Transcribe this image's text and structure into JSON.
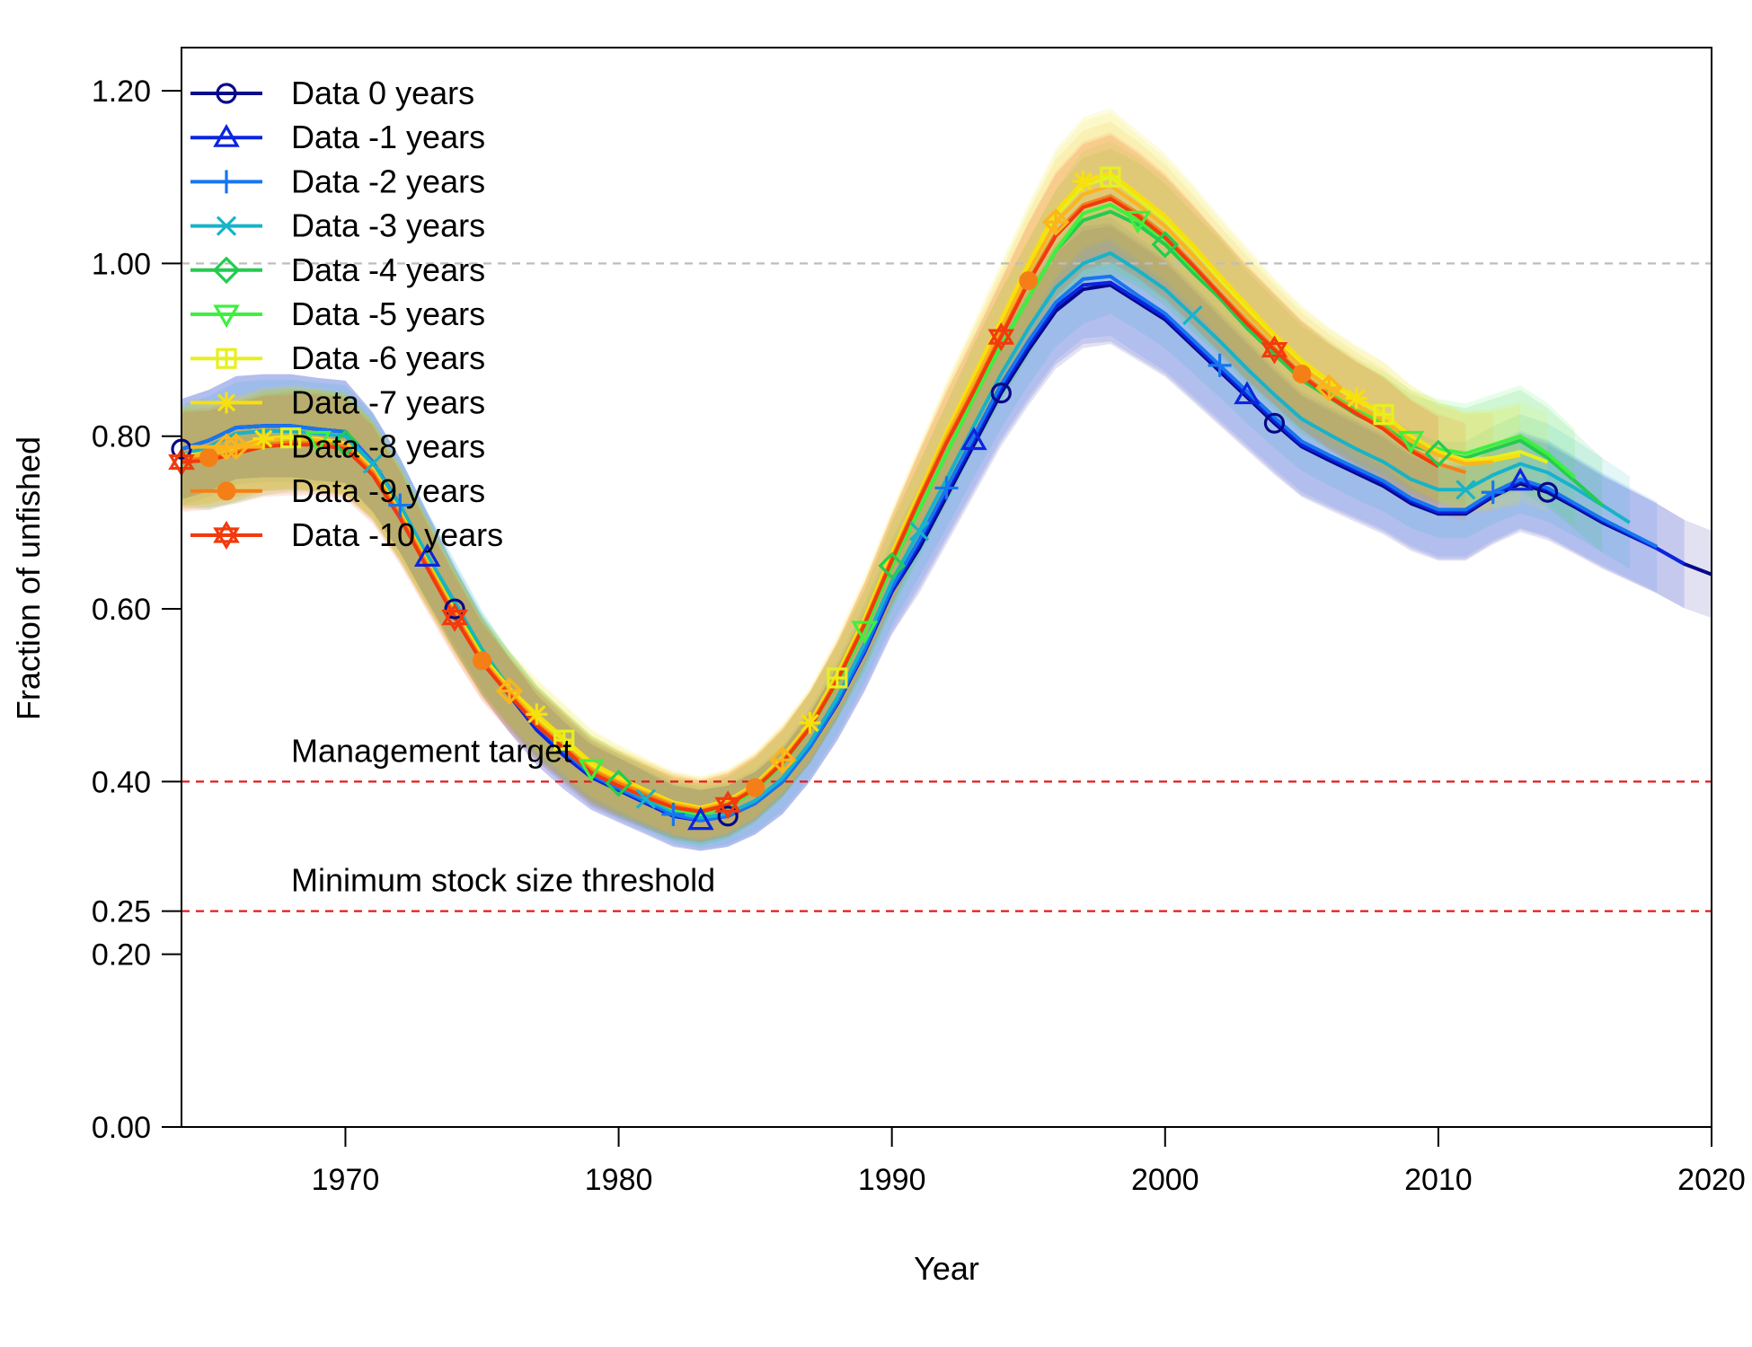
{
  "chart_data": {
    "type": "line",
    "title": "",
    "xlabel": "Year",
    "ylabel": "Fraction of unfished",
    "xlim": [
      1964,
      2020
    ],
    "ylim": [
      0,
      1.25
    ],
    "x_ticks": [
      "1970",
      "1980",
      "1990",
      "2000",
      "2010",
      "2020"
    ],
    "x_tick_values": [
      1970,
      1980,
      1990,
      2000,
      2010,
      2020
    ],
    "y_ticks": [
      "0.00",
      "0.20",
      "0.25",
      "0.40",
      "0.60",
      "0.80",
      "1.00",
      "1.20"
    ],
    "y_tick_values": [
      0.0,
      0.2,
      0.25,
      0.4,
      0.6,
      0.8,
      1.0,
      1.2
    ],
    "grid": false,
    "legend_position": "top-left",
    "reference_lines": [
      {
        "y": 1.0,
        "color": "#bdbdbd",
        "style": "dashed",
        "label": ""
      },
      {
        "y": 0.4,
        "color": "#e31a1c",
        "style": "dashed",
        "label": "Management target"
      },
      {
        "y": 0.25,
        "color": "#e31a1c",
        "style": "dashed",
        "label": "Minimum stock size threshold"
      }
    ],
    "x": [
      1964,
      1965,
      1966,
      1967,
      1968,
      1969,
      1970,
      1971,
      1972,
      1973,
      1974,
      1975,
      1976,
      1977,
      1978,
      1979,
      1980,
      1981,
      1982,
      1983,
      1984,
      1985,
      1986,
      1987,
      1988,
      1989,
      1990,
      1991,
      1992,
      1993,
      1994,
      1995,
      1996,
      1997,
      1998,
      1999,
      2000,
      2001,
      2002,
      2003,
      2004,
      2005,
      2006,
      2007,
      2008,
      2009,
      2010,
      2011,
      2012,
      2013,
      2014,
      2015,
      2016,
      2017,
      2018,
      2019,
      2020
    ],
    "series": [
      {
        "name": "Data 0 years",
        "color": "#08088a",
        "marker": "circle",
        "values": [
          0.785,
          0.795,
          0.81,
          0.812,
          0.812,
          0.808,
          0.805,
          0.77,
          0.72,
          0.66,
          0.6,
          0.545,
          0.5,
          0.46,
          0.43,
          0.405,
          0.39,
          0.375,
          0.36,
          0.355,
          0.36,
          0.375,
          0.4,
          0.44,
          0.49,
          0.55,
          0.62,
          0.67,
          0.73,
          0.79,
          0.85,
          0.9,
          0.945,
          0.97,
          0.975,
          0.955,
          0.935,
          0.905,
          0.875,
          0.845,
          0.815,
          0.788,
          0.772,
          0.757,
          0.742,
          0.722,
          0.71,
          0.71,
          0.73,
          0.745,
          0.735,
          0.718,
          0.7,
          0.685,
          0.67,
          0.652,
          0.64
        ]
      },
      {
        "name": "Data -1 years",
        "color": "#0b24e0",
        "marker": "triangle",
        "values": [
          0.785,
          0.795,
          0.81,
          0.812,
          0.812,
          0.808,
          0.805,
          0.77,
          0.72,
          0.66,
          0.6,
          0.545,
          0.5,
          0.46,
          0.43,
          0.405,
          0.39,
          0.375,
          0.36,
          0.355,
          0.36,
          0.375,
          0.4,
          0.44,
          0.49,
          0.55,
          0.62,
          0.675,
          0.735,
          0.795,
          0.855,
          0.905,
          0.95,
          0.975,
          0.978,
          0.958,
          0.938,
          0.908,
          0.878,
          0.848,
          0.818,
          0.79,
          0.775,
          0.76,
          0.745,
          0.725,
          0.712,
          0.712,
          0.732,
          0.748,
          0.738,
          0.72,
          0.702,
          0.686,
          0.67,
          0.652,
          null
        ]
      },
      {
        "name": "Data -2 years",
        "color": "#1676f0",
        "marker": "plus",
        "values": [
          0.785,
          0.795,
          0.81,
          0.812,
          0.812,
          0.808,
          0.805,
          0.77,
          0.72,
          0.66,
          0.605,
          0.55,
          0.505,
          0.465,
          0.435,
          0.408,
          0.392,
          0.377,
          0.362,
          0.355,
          0.36,
          0.375,
          0.4,
          0.44,
          0.492,
          0.553,
          0.625,
          0.68,
          0.74,
          0.8,
          0.86,
          0.91,
          0.955,
          0.982,
          0.985,
          0.963,
          0.942,
          0.912,
          0.882,
          0.852,
          0.822,
          0.794,
          0.778,
          0.763,
          0.748,
          0.728,
          0.715,
          0.715,
          0.735,
          0.75,
          0.74,
          0.722,
          0.704,
          0.688,
          0.672,
          null,
          null
        ]
      },
      {
        "name": "Data -3 years",
        "color": "#17b3c9",
        "marker": "x",
        "values": [
          0.778,
          0.788,
          0.803,
          0.806,
          0.806,
          0.803,
          0.8,
          0.768,
          0.72,
          0.662,
          0.608,
          0.553,
          0.508,
          0.47,
          0.44,
          0.412,
          0.395,
          0.38,
          0.365,
          0.358,
          0.363,
          0.378,
          0.404,
          0.445,
          0.497,
          0.56,
          0.632,
          0.69,
          0.75,
          0.812,
          0.872,
          0.925,
          0.972,
          1.0,
          1.012,
          0.992,
          0.97,
          0.94,
          0.91,
          0.878,
          0.848,
          0.82,
          0.802,
          0.785,
          0.77,
          0.75,
          0.738,
          0.738,
          0.755,
          0.768,
          0.758,
          0.74,
          0.72,
          0.7,
          null,
          null,
          null
        ]
      },
      {
        "name": "Data -4 years",
        "color": "#23cc4f",
        "marker": "diamond",
        "values": [
          0.775,
          0.772,
          0.782,
          0.795,
          0.797,
          0.795,
          0.792,
          0.762,
          0.712,
          0.655,
          0.6,
          0.548,
          0.508,
          0.47,
          0.442,
          0.415,
          0.398,
          0.383,
          0.368,
          0.362,
          0.37,
          0.39,
          0.42,
          0.462,
          0.515,
          0.575,
          0.65,
          0.715,
          0.78,
          0.845,
          0.905,
          0.96,
          1.015,
          1.05,
          1.06,
          1.045,
          1.022,
          0.99,
          0.96,
          0.925,
          0.895,
          0.865,
          0.845,
          0.825,
          0.81,
          0.79,
          0.78,
          0.775,
          0.785,
          0.795,
          0.775,
          0.748,
          0.72,
          null,
          null,
          null,
          null
        ]
      },
      {
        "name": "Data -5 years",
        "color": "#3ef03e",
        "marker": "triangle-down",
        "values": [
          0.778,
          0.775,
          0.78,
          0.79,
          0.795,
          0.795,
          0.79,
          0.76,
          0.71,
          0.653,
          0.598,
          0.546,
          0.508,
          0.47,
          0.442,
          0.415,
          0.398,
          0.383,
          0.368,
          0.362,
          0.37,
          0.39,
          0.42,
          0.462,
          0.515,
          0.575,
          0.65,
          0.715,
          0.78,
          0.845,
          0.905,
          0.96,
          1.015,
          1.058,
          1.068,
          1.05,
          1.028,
          0.995,
          0.965,
          0.93,
          0.9,
          0.87,
          0.85,
          0.83,
          0.815,
          0.795,
          0.785,
          0.78,
          0.79,
          0.8,
          0.78,
          0.752,
          null,
          null,
          null,
          null,
          null
        ]
      },
      {
        "name": "Data -6 years",
        "color": "#e6f01e",
        "marker": "square",
        "values": [
          0.778,
          0.778,
          0.785,
          0.795,
          0.798,
          0.795,
          0.79,
          0.76,
          0.71,
          0.652,
          0.597,
          0.545,
          0.508,
          0.475,
          0.448,
          0.42,
          0.403,
          0.388,
          0.374,
          0.368,
          0.376,
          0.395,
          0.425,
          0.465,
          0.52,
          0.585,
          0.66,
          0.73,
          0.8,
          0.865,
          0.93,
          0.995,
          1.055,
          1.09,
          1.1,
          1.075,
          1.05,
          1.018,
          0.982,
          0.948,
          0.915,
          0.885,
          0.862,
          0.842,
          0.825,
          0.8,
          0.782,
          0.772,
          0.775,
          0.782,
          0.77,
          null,
          null,
          null,
          null,
          null,
          null
        ]
      },
      {
        "name": "Data -7 years",
        "color": "#f7e00c",
        "marker": "asterisk",
        "values": [
          0.778,
          0.78,
          0.788,
          0.797,
          0.8,
          0.797,
          0.792,
          0.762,
          0.712,
          0.654,
          0.598,
          0.545,
          0.508,
          0.478,
          0.45,
          0.422,
          0.405,
          0.39,
          0.376,
          0.37,
          0.378,
          0.397,
          0.428,
          0.468,
          0.525,
          0.59,
          0.665,
          0.735,
          0.805,
          0.87,
          0.935,
          1.0,
          1.06,
          1.095,
          1.105,
          1.08,
          1.055,
          1.022,
          0.986,
          0.952,
          0.918,
          0.888,
          0.864,
          0.844,
          0.826,
          0.8,
          0.782,
          0.77,
          0.772,
          0.778,
          null,
          null,
          null,
          null,
          null,
          null,
          null
        ]
      },
      {
        "name": "Data -8 years",
        "color": "#fbb41c",
        "marker": "diamond-plus",
        "values": [
          0.775,
          0.78,
          0.788,
          0.795,
          0.797,
          0.795,
          0.79,
          0.76,
          0.71,
          0.652,
          0.595,
          0.542,
          0.505,
          0.47,
          0.442,
          0.415,
          0.4,
          0.387,
          0.374,
          0.368,
          0.376,
          0.395,
          0.425,
          0.465,
          0.52,
          0.585,
          0.66,
          0.73,
          0.8,
          0.862,
          0.925,
          0.99,
          1.048,
          1.08,
          1.09,
          1.068,
          1.043,
          1.01,
          0.975,
          0.942,
          0.91,
          0.88,
          0.856,
          0.836,
          0.818,
          0.794,
          0.778,
          0.768,
          0.77,
          null,
          null,
          null,
          null,
          null,
          null,
          null,
          null
        ]
      },
      {
        "name": "Data -9 years",
        "color": "#f57f17",
        "marker": "circle-filled",
        "values": [
          0.772,
          0.775,
          0.782,
          0.79,
          0.793,
          0.792,
          0.788,
          0.758,
          0.708,
          0.65,
          0.593,
          0.54,
          0.502,
          0.467,
          0.44,
          0.413,
          0.398,
          0.385,
          0.372,
          0.366,
          0.374,
          0.393,
          0.423,
          0.463,
          0.518,
          0.583,
          0.658,
          0.728,
          0.795,
          0.855,
          0.918,
          0.98,
          1.035,
          1.068,
          1.078,
          1.058,
          1.033,
          1.0,
          0.966,
          0.933,
          0.902,
          0.872,
          0.848,
          0.828,
          0.81,
          0.785,
          0.768,
          0.758,
          null,
          null,
          null,
          null,
          null,
          null,
          null,
          null,
          null
        ]
      },
      {
        "name": "Data -10 years",
        "color": "#f23a0c",
        "marker": "star",
        "values": [
          0.77,
          0.772,
          0.78,
          0.788,
          0.79,
          0.79,
          0.785,
          0.755,
          0.705,
          0.647,
          0.59,
          0.538,
          0.5,
          0.465,
          0.438,
          0.41,
          0.395,
          0.382,
          0.37,
          0.365,
          0.373,
          0.392,
          0.422,
          0.462,
          0.517,
          0.582,
          0.656,
          0.726,
          0.792,
          0.852,
          0.915,
          0.978,
          1.032,
          1.065,
          1.075,
          1.055,
          1.03,
          0.998,
          0.964,
          0.93,
          0.9,
          0.87,
          0.846,
          0.826,
          0.808,
          0.783,
          0.765,
          null,
          null,
          null,
          null,
          null,
          null,
          null,
          null,
          null,
          null
        ]
      }
    ]
  }
}
